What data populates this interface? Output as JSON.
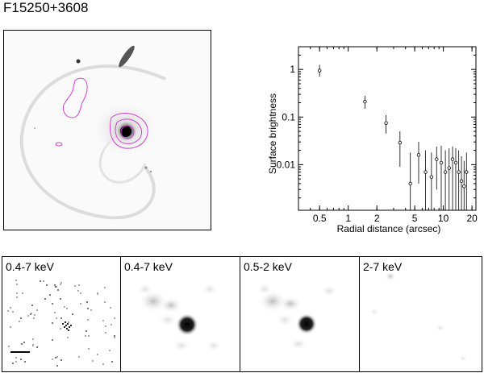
{
  "figure": {
    "title": "F15250+3608"
  },
  "panels": [
    {
      "label": "0.4-7 keV"
    },
    {
      "label": "0.4-7 keV"
    },
    {
      "label": "0.5-2 keV"
    },
    {
      "label": "2-7 keV"
    }
  ],
  "chart_data": {
    "type": "scatter",
    "xlabel": "Radial distance (arcsec)",
    "ylabel": "Surface brightness",
    "x_scale": "log",
    "y_scale": "log",
    "xlim": [
      0.3,
      22
    ],
    "ylim": [
      0.0011,
      3
    ],
    "x_ticks": [
      0.5,
      1,
      2,
      5,
      10,
      20
    ],
    "x_tick_labels": [
      "0.5",
      "1",
      "2",
      "5",
      "10",
      "20"
    ],
    "y_ticks": [
      1,
      0.1,
      0.01
    ],
    "y_tick_labels": [
      "1",
      "0.1",
      "0.01"
    ],
    "points": [
      {
        "x": 0.5,
        "y": 0.95,
        "err": [
          0.7,
          1.25
        ]
      },
      {
        "x": 1.5,
        "y": 0.21,
        "err": [
          0.15,
          0.28
        ]
      },
      {
        "x": 2.5,
        "y": 0.075,
        "err": [
          0.045,
          0.11
        ]
      },
      {
        "x": 3.5,
        "y": 0.029,
        "err": [
          0.009,
          0.05
        ]
      },
      {
        "x": 4.5,
        "y": 0.004,
        "err": [
          0.0011,
          0.018
        ]
      },
      {
        "x": 5.5,
        "y": 0.016,
        "err": [
          0.004,
          0.03
        ]
      },
      {
        "x": 6.5,
        "y": 0.007,
        "err": [
          0.0011,
          0.02
        ]
      },
      {
        "x": 7.5,
        "y": 0.0055,
        "err": [
          0.0011,
          0.018
        ]
      },
      {
        "x": 8.5,
        "y": 0.013,
        "err": [
          0.003,
          0.024
        ]
      },
      {
        "x": 9.5,
        "y": 0.011,
        "err": [
          0.0011,
          0.025
        ]
      },
      {
        "x": 10.5,
        "y": 0.007,
        "err": [
          0.0011,
          0.02
        ]
      },
      {
        "x": 11.5,
        "y": 0.0085,
        "err": [
          0.0011,
          0.022
        ]
      },
      {
        "x": 12.5,
        "y": 0.013,
        "err": [
          0.0011,
          0.024
        ]
      },
      {
        "x": 13.5,
        "y": 0.011,
        "err": [
          0.0011,
          0.022
        ]
      },
      {
        "x": 14.5,
        "y": 0.007,
        "err": [
          0.0011,
          0.02
        ]
      },
      {
        "x": 15.5,
        "y": 0.0045,
        "err": [
          0.0011,
          0.015
        ]
      },
      {
        "x": 16.5,
        "y": 0.0035,
        "err": [
          0.0011,
          0.012
        ]
      },
      {
        "x": 17.5,
        "y": 0.007,
        "err": [
          0.0011,
          0.018
        ]
      }
    ]
  }
}
